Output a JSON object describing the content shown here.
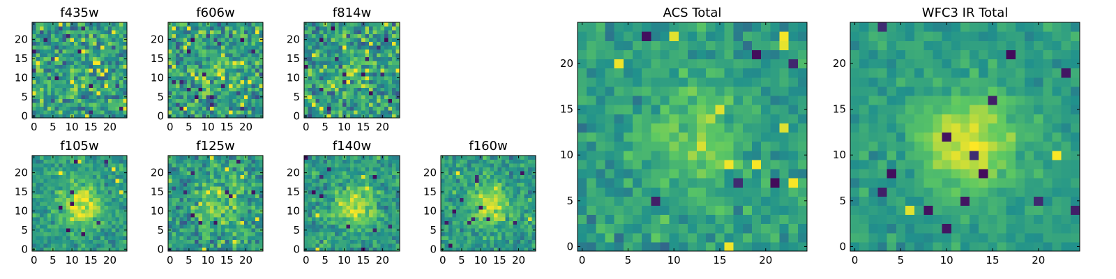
{
  "chart_data": [
    {
      "type": "heatmap",
      "title": "f435w",
      "xticks": [
        0,
        5,
        10,
        15,
        20
      ],
      "yticks": [
        0,
        5,
        10,
        15,
        20
      ],
      "xlim": [
        -0.5,
        24.5
      ],
      "ylim": [
        -0.5,
        24.5
      ],
      "grid_size": 25,
      "seed": 11,
      "peak": 0.15,
      "noise": 1.0,
      "dark_pixels": 9,
      "bright_pixels": 18
    },
    {
      "type": "heatmap",
      "title": "f606w",
      "xticks": [
        0,
        5,
        10,
        15,
        20
      ],
      "yticks": [
        0,
        5,
        10,
        15,
        20
      ],
      "xlim": [
        -0.5,
        24.5
      ],
      "ylim": [
        -0.5,
        24.5
      ],
      "grid_size": 25,
      "seed": 23,
      "peak": 0.35,
      "noise": 1.0,
      "dark_pixels": 14,
      "bright_pixels": 16
    },
    {
      "type": "heatmap",
      "title": "f814w",
      "xticks": [
        0,
        5,
        10,
        15,
        20
      ],
      "yticks": [
        0,
        5,
        10,
        15,
        20
      ],
      "xlim": [
        -0.5,
        24.5
      ],
      "ylim": [
        -0.5,
        24.5
      ],
      "grid_size": 25,
      "seed": 37,
      "peak": 0.35,
      "noise": 1.0,
      "dark_pixels": 14,
      "bright_pixels": 12
    },
    {
      "type": "heatmap",
      "title": "f105w",
      "xticks": [
        0,
        5,
        10,
        15,
        20
      ],
      "yticks": [
        0,
        5,
        10,
        15,
        20
      ],
      "xlim": [
        -0.5,
        24.5
      ],
      "ylim": [
        -0.5,
        24.5
      ],
      "grid_size": 25,
      "seed": 41,
      "peak": 1.0,
      "noise": 0.55,
      "dark_pixels": 8,
      "bright_pixels": 6
    },
    {
      "type": "heatmap",
      "title": "f125w",
      "xticks": [
        0,
        5,
        10,
        15,
        20
      ],
      "yticks": [
        0,
        5,
        10,
        15,
        20
      ],
      "xlim": [
        -0.5,
        24.5
      ],
      "ylim": [
        -0.5,
        24.5
      ],
      "grid_size": 25,
      "seed": 53,
      "peak": 0.6,
      "noise": 0.8,
      "dark_pixels": 9,
      "bright_pixels": 10
    },
    {
      "type": "heatmap",
      "title": "f140w",
      "xticks": [
        0,
        5,
        10,
        15,
        20
      ],
      "yticks": [
        0,
        5,
        10,
        15,
        20
      ],
      "xlim": [
        -0.5,
        24.5
      ],
      "ylim": [
        -0.5,
        24.5
      ],
      "grid_size": 25,
      "seed": 67,
      "peak": 0.9,
      "noise": 0.6,
      "dark_pixels": 10,
      "bright_pixels": 5
    },
    {
      "type": "heatmap",
      "title": "f160w",
      "xticks": [
        0,
        5,
        10,
        15,
        20
      ],
      "yticks": [
        0,
        5,
        10,
        15,
        20
      ],
      "xlim": [
        -0.5,
        24.5
      ],
      "ylim": [
        -0.5,
        24.5
      ],
      "grid_size": 25,
      "seed": 79,
      "peak": 0.85,
      "noise": 0.6,
      "dark_pixels": 12,
      "bright_pixels": 4
    },
    {
      "type": "heatmap",
      "title": "ACS Total",
      "xticks": [
        0,
        5,
        10,
        15,
        20
      ],
      "yticks": [
        0,
        5,
        10,
        15,
        20
      ],
      "xlim": [
        -0.5,
        24.5
      ],
      "ylim": [
        -0.5,
        24.5
      ],
      "grid_size": 25,
      "seed": 97,
      "peak": 0.55,
      "noise": 0.5,
      "dark_pixels": 6,
      "bright_pixels": 10
    },
    {
      "type": "heatmap",
      "title": "WFC3 IR Total",
      "xticks": [
        0,
        5,
        10,
        15,
        20
      ],
      "yticks": [
        0,
        5,
        10,
        15,
        20
      ],
      "xlim": [
        -0.5,
        24.5
      ],
      "ylim": [
        -0.5,
        24.5
      ],
      "grid_size": 25,
      "seed": 113,
      "peak": 1.0,
      "noise": 0.35,
      "dark_pixels": 14,
      "bright_pixels": 2
    }
  ],
  "colormap": [
    "#440154",
    "#3b528b",
    "#21918c",
    "#5ec962",
    "#fde725"
  ]
}
